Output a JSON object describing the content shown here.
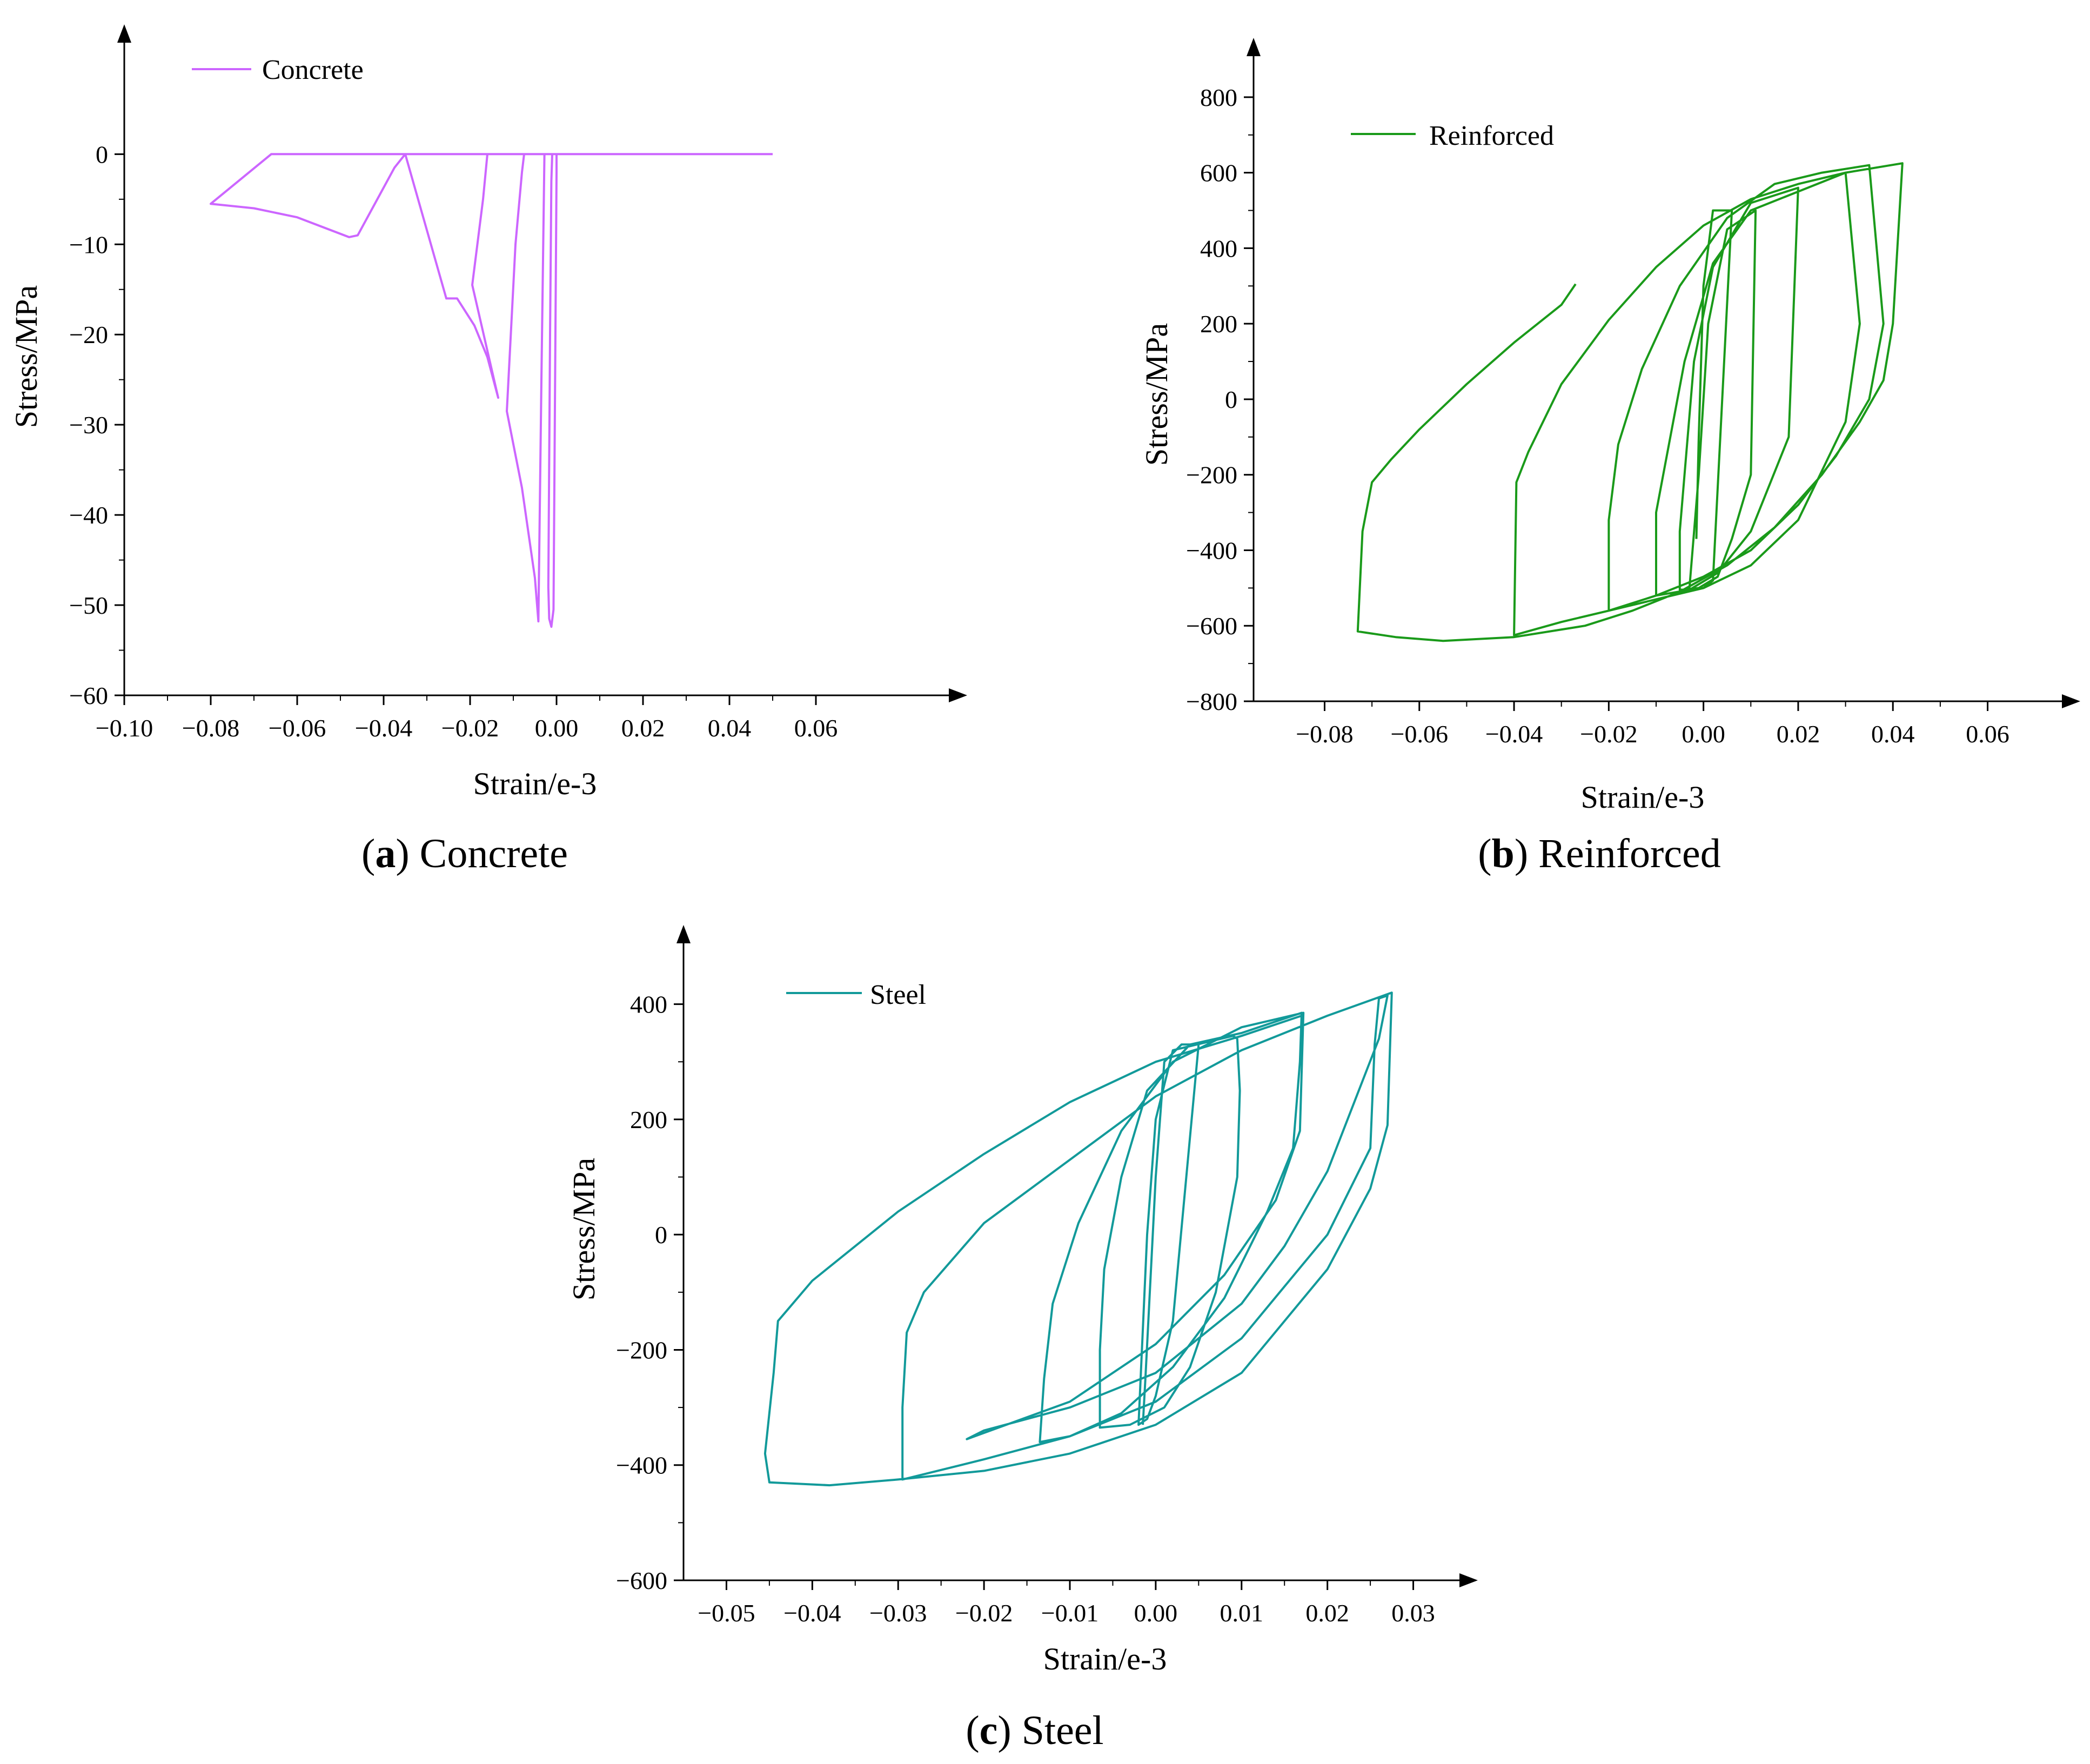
{
  "chart_data": [
    {
      "id": "a",
      "type": "line",
      "caption_letter": "a",
      "caption_text": "Concrete",
      "xlabel": "Strain/e-3",
      "ylabel": "Stress/MPa",
      "xlim": [
        -0.1,
        0.09
      ],
      "ylim": [
        -60,
        12
      ],
      "xticks": [
        -0.1,
        -0.08,
        -0.06,
        -0.04,
        -0.02,
        0.0,
        0.02,
        0.04,
        0.06
      ],
      "xtick_labels": [
        "−0.10",
        "−0.08",
        "−0.06",
        "−0.04",
        "−0.02",
        "0.00",
        "0.02",
        "0.04",
        "0.06"
      ],
      "yticks": [
        0,
        -10,
        -20,
        -30,
        -40,
        -50,
        -60
      ],
      "ytick_labels": [
        "0",
        "−10",
        "−20",
        "−30",
        "−40",
        "−50",
        "−60"
      ],
      "legend_position": "top-left",
      "series": [
        {
          "name": "Concrete",
          "color": "#cc66ff",
          "points": [
            [
              0.05,
              0
            ],
            [
              0.0,
              0
            ],
            [
              0.0,
              -2
            ],
            [
              -0.0007,
              -50.5
            ],
            [
              -0.0012,
              -52.4
            ],
            [
              -0.0017,
              -51.5
            ],
            [
              -0.0019,
              -48
            ],
            [
              -0.0015,
              -20
            ],
            [
              -0.0012,
              -3
            ],
            [
              -0.001,
              0
            ],
            [
              -0.0028,
              0
            ],
            [
              -0.0035,
              -25
            ],
            [
              -0.0042,
              -51.8
            ],
            [
              -0.005,
              -47
            ],
            [
              -0.008,
              -37
            ],
            [
              -0.0115,
              -28.5
            ],
            [
              -0.0095,
              -10
            ],
            [
              -0.008,
              -2
            ],
            [
              -0.0075,
              0
            ],
            [
              -0.016,
              0
            ],
            [
              -0.017,
              -5
            ],
            [
              -0.0195,
              -14.5
            ],
            [
              -0.0135,
              -27
            ],
            [
              -0.016,
              -22.5
            ],
            [
              -0.019,
              -19
            ],
            [
              -0.023,
              -16
            ],
            [
              -0.0255,
              -16
            ],
            [
              -0.035,
              0
            ],
            [
              -0.0375,
              -1.5
            ],
            [
              -0.046,
              -9
            ],
            [
              -0.048,
              -9.2
            ],
            [
              -0.06,
              -7
            ],
            [
              -0.07,
              -6
            ],
            [
              -0.08,
              -5.5
            ],
            [
              -0.066,
              0
            ],
            [
              -0.063,
              0
            ],
            [
              0.05,
              0
            ]
          ]
        }
      ]
    },
    {
      "id": "b",
      "type": "line",
      "caption_letter": "b",
      "caption_text": "Reinforced",
      "xlabel": "Strain/e-3",
      "ylabel": "Stress/MPa",
      "xlim": [
        -0.095,
        0.075
      ],
      "ylim": [
        -800,
        900
      ],
      "xticks": [
        -0.08,
        -0.06,
        -0.04,
        -0.02,
        0.0,
        0.02,
        0.04,
        0.06
      ],
      "xtick_labels": [
        "−0.08",
        "−0.06",
        "−0.04",
        "−0.02",
        "0.00",
        "0.02",
        "0.04",
        "0.06"
      ],
      "yticks": [
        800,
        600,
        400,
        200,
        0,
        -200,
        -400,
        -600,
        -800
      ],
      "ytick_labels": [
        "800",
        "600",
        "400",
        "200",
        "0",
        "−200",
        "−400",
        "−600",
        "−800"
      ],
      "legend_position": "top-left",
      "series": [
        {
          "name": "Reinforced",
          "color": "#1a9a1a",
          "points": [
            [
              -0.0015,
              -370
            ],
            [
              -0.001,
              -100
            ],
            [
              0.0,
              300
            ],
            [
              0.002,
              500
            ],
            [
              0.006,
              500
            ],
            [
              0.002,
              -480
            ],
            [
              0.0,
              -500
            ],
            [
              -0.003,
              -505
            ],
            [
              -0.001,
              -200
            ],
            [
              0.001,
              200
            ],
            [
              0.005,
              450
            ],
            [
              0.011,
              500
            ],
            [
              0.01,
              -200
            ],
            [
              0.006,
              -370
            ],
            [
              0.003,
              -470
            ],
            [
              -0.001,
              -500
            ],
            [
              -0.005,
              -505
            ],
            [
              -0.005,
              -350
            ],
            [
              -0.002,
              100
            ],
            [
              0.002,
              350
            ],
            [
              0.01,
              520
            ],
            [
              0.02,
              560
            ],
            [
              0.018,
              -100
            ],
            [
              0.01,
              -350
            ],
            [
              0.003,
              -460
            ],
            [
              -0.003,
              -505
            ],
            [
              -0.01,
              -520
            ],
            [
              -0.01,
              -300
            ],
            [
              -0.004,
              100
            ],
            [
              0.002,
              360
            ],
            [
              0.01,
              500
            ],
            [
              0.02,
              550
            ],
            [
              0.03,
              600
            ],
            [
              0.033,
              200
            ],
            [
              0.03,
              -60
            ],
            [
              0.02,
              -320
            ],
            [
              0.01,
              -440
            ],
            [
              0.0,
              -500
            ],
            [
              -0.01,
              -530
            ],
            [
              -0.02,
              -560
            ],
            [
              -0.02,
              -320
            ],
            [
              -0.018,
              -120
            ],
            [
              -0.013,
              80
            ],
            [
              -0.005,
              300
            ],
            [
              0.005,
              480
            ],
            [
              0.015,
              570
            ],
            [
              0.025,
              600
            ],
            [
              0.035,
              620
            ],
            [
              0.038,
              200
            ],
            [
              0.035,
              0
            ],
            [
              0.028,
              -150
            ],
            [
              0.02,
              -280
            ],
            [
              0.01,
              -400
            ],
            [
              0.0,
              -470
            ],
            [
              -0.01,
              -520
            ],
            [
              -0.02,
              -560
            ],
            [
              -0.03,
              -590
            ],
            [
              -0.04,
              -625
            ],
            [
              -0.0395,
              -220
            ],
            [
              -0.037,
              -140
            ],
            [
              -0.03,
              40
            ],
            [
              -0.02,
              210
            ],
            [
              -0.01,
              350
            ],
            [
              0.0,
              460
            ],
            [
              0.01,
              530
            ],
            [
              0.02,
              570
            ],
            [
              0.03,
              600
            ],
            [
              0.042,
              625
            ],
            [
              0.04,
              200
            ],
            [
              0.038,
              50
            ],
            [
              0.033,
              -60
            ],
            [
              0.025,
              -200
            ],
            [
              0.015,
              -340
            ],
            [
              0.005,
              -440
            ],
            [
              -0.005,
              -510
            ],
            [
              -0.015,
              -560
            ],
            [
              -0.025,
              -600
            ],
            [
              -0.04,
              -630
            ],
            [
              -0.055,
              -640
            ],
            [
              -0.065,
              -630
            ],
            [
              -0.073,
              -615
            ],
            [
              -0.072,
              -350
            ],
            [
              -0.07,
              -220
            ],
            [
              -0.066,
              -160
            ],
            [
              -0.06,
              -80
            ],
            [
              -0.05,
              40
            ],
            [
              -0.04,
              150
            ],
            [
              -0.03,
              250
            ],
            [
              -0.027,
              305
            ]
          ]
        }
      ]
    },
    {
      "id": "c",
      "type": "line",
      "caption_letter": "c",
      "caption_text": "Steel",
      "xlabel": "Strain/e-3",
      "ylabel": "Stress/MPa",
      "xlim": [
        -0.055,
        0.035
      ],
      "ylim": [
        -600,
        500
      ],
      "xticks": [
        -0.05,
        -0.04,
        -0.03,
        -0.02,
        -0.01,
        0.0,
        0.01,
        0.02,
        0.03
      ],
      "xtick_labels": [
        "−0.05",
        "−0.04",
        "−0.03",
        "−0.02",
        "−0.01",
        "0.00",
        "0.01",
        "0.02",
        "0.03"
      ],
      "yticks": [
        400,
        200,
        0,
        -200,
        -400,
        -600
      ],
      "ytick_labels": [
        "400",
        "200",
        "0",
        "−200",
        "−400",
        "−600"
      ],
      "legend_position": "top-left",
      "series": [
        {
          "name": "Steel",
          "color": "#129a9a",
          "points": [
            [
              -0.0015,
              -330
            ],
            [
              -0.0012,
              -250
            ],
            [
              0.0,
              100
            ],
            [
              0.001,
              300
            ],
            [
              0.003,
              330
            ],
            [
              0.005,
              330
            ],
            [
              0.002,
              -150
            ],
            [
              0.0,
              -280
            ],
            [
              -0.001,
              -320
            ],
            [
              -0.002,
              -330
            ],
            [
              -0.001,
              0
            ],
            [
              0.0,
              200
            ],
            [
              0.002,
              320
            ],
            [
              0.009,
              345
            ],
            [
              0.0095,
              340
            ],
            [
              0.0098,
              250
            ],
            [
              0.0095,
              100
            ],
            [
              0.007,
              -100
            ],
            [
              0.004,
              -230
            ],
            [
              0.001,
              -300
            ],
            [
              -0.003,
              -330
            ],
            [
              -0.0065,
              -335
            ],
            [
              -0.0065,
              -200
            ],
            [
              -0.006,
              -60
            ],
            [
              -0.004,
              100
            ],
            [
              -0.001,
              250
            ],
            [
              0.004,
              330
            ],
            [
              0.01,
              350
            ],
            [
              0.017,
              385
            ],
            [
              0.0168,
              300
            ],
            [
              0.016,
              150
            ],
            [
              0.013,
              40
            ],
            [
              0.008,
              -110
            ],
            [
              0.002,
              -230
            ],
            [
              -0.004,
              -310
            ],
            [
              -0.01,
              -350
            ],
            [
              -0.0135,
              -360
            ],
            [
              -0.013,
              -250
            ],
            [
              -0.012,
              -120
            ],
            [
              -0.009,
              20
            ],
            [
              -0.004,
              180
            ],
            [
              0.002,
              300
            ],
            [
              0.01,
              360
            ],
            [
              0.0172,
              385
            ],
            [
              0.0168,
              180
            ],
            [
              0.014,
              60
            ],
            [
              0.008,
              -70
            ],
            [
              0.0,
              -190
            ],
            [
              -0.01,
              -290
            ],
            [
              -0.022,
              -355
            ],
            [
              -0.02,
              -340
            ],
            [
              -0.01,
              -300
            ],
            [
              0.0,
              -240
            ],
            [
              0.01,
              -120
            ],
            [
              0.015,
              -20
            ],
            [
              0.02,
              110
            ],
            [
              0.026,
              340
            ],
            [
              0.027,
              415
            ],
            [
              0.026,
              410
            ],
            [
              0.0255,
              330
            ],
            [
              0.025,
              150
            ],
            [
              0.02,
              0
            ],
            [
              0.01,
              -180
            ],
            [
              0.0,
              -290
            ],
            [
              -0.01,
              -350
            ],
            [
              -0.02,
              -390
            ],
            [
              -0.0295,
              -425
            ],
            [
              -0.0295,
              -300
            ],
            [
              -0.029,
              -170
            ],
            [
              -0.027,
              -100
            ],
            [
              -0.02,
              20
            ],
            [
              -0.01,
              130
            ],
            [
              0.0,
              240
            ],
            [
              0.01,
              320
            ],
            [
              0.02,
              380
            ],
            [
              0.0275,
              420
            ],
            [
              0.027,
              190
            ],
            [
              0.025,
              80
            ],
            [
              0.02,
              -60
            ],
            [
              0.01,
              -240
            ],
            [
              0.0,
              -330
            ],
            [
              -0.01,
              -380
            ],
            [
              -0.02,
              -410
            ],
            [
              -0.03,
              -425
            ],
            [
              -0.038,
              -435
            ],
            [
              -0.045,
              -430
            ],
            [
              -0.0455,
              -380
            ],
            [
              -0.0445,
              -240
            ],
            [
              -0.044,
              -150
            ],
            [
              -0.04,
              -80
            ],
            [
              -0.03,
              40
            ],
            [
              -0.02,
              140
            ],
            [
              -0.01,
              230
            ],
            [
              0.0,
              300
            ],
            [
              0.01,
              345
            ],
            [
              0.017,
              380
            ]
          ]
        }
      ]
    }
  ]
}
